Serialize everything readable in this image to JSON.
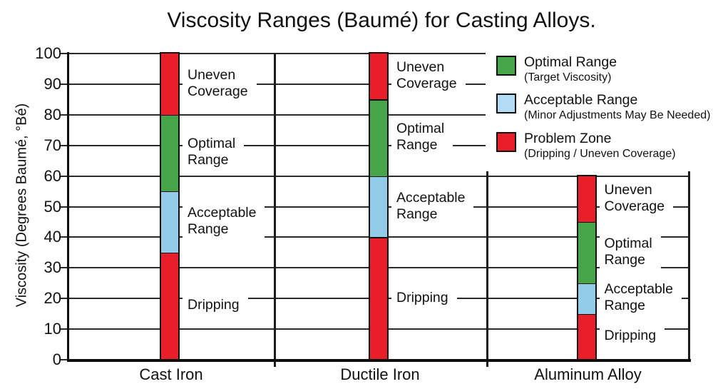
{
  "title": "Viscosity Ranges (Baumé) for Casting Alloys.",
  "colors": {
    "optimal": "#46a549",
    "acceptable": "#92cce9",
    "acceptable_legend": "#b3dcf4",
    "problem": "#e81f28",
    "axis_line": "#101010",
    "grid_line": "#2a2a2a"
  },
  "legend": {
    "items": [
      {
        "zone": "optimal",
        "label": "Optimal Range",
        "sublabel": "(Target Viscosity)"
      },
      {
        "zone": "acceptable",
        "label": "Acceptable Range",
        "sublabel": "(Minor Adjustments May Be Needed)"
      },
      {
        "zone": "problem",
        "label": "Problem Zone",
        "sublabel": "(Dripping / Uneven Coverage)"
      }
    ]
  },
  "chart_data": {
    "type": "bar",
    "stacked": true,
    "title": "Viscosity Ranges (Baumé) for Casting Alloys.",
    "xlabel": "",
    "ylabel": "Viscosity (Degrees Baumé, °Bé)",
    "ylim": [
      0,
      100
    ],
    "yticks": [
      0,
      10,
      20,
      30,
      40,
      50,
      60,
      70,
      80,
      90,
      100
    ],
    "grid": true,
    "legend_position": "top-right",
    "categories": [
      "Cast Iron",
      "Ductile Iron",
      "Aluminum Alloy"
    ],
    "series": [
      {
        "category": "Cast Iron",
        "segments": [
          {
            "from": 0,
            "to": 35,
            "zone": "problem",
            "label": "Dripping"
          },
          {
            "from": 35,
            "to": 55,
            "zone": "acceptable",
            "label": "Acceptable\nRange"
          },
          {
            "from": 55,
            "to": 80,
            "zone": "optimal",
            "label": "Optimal\nRange"
          },
          {
            "from": 80,
            "to": 100,
            "zone": "problem",
            "label": "Uneven\nCoverage"
          }
        ]
      },
      {
        "category": "Ductile Iron",
        "segments": [
          {
            "from": 0,
            "to": 40,
            "zone": "problem",
            "label": "Dripping"
          },
          {
            "from": 40,
            "to": 60,
            "zone": "acceptable",
            "label": "Acceptable\nRange"
          },
          {
            "from": 60,
            "to": 85,
            "zone": "optimal",
            "label": "Optimal\nRange"
          },
          {
            "from": 85,
            "to": 100,
            "zone": "problem",
            "label": "Uneven\nCoverage"
          }
        ]
      },
      {
        "category": "Aluminum Alloy",
        "segments": [
          {
            "from": 0,
            "to": 15,
            "zone": "problem",
            "label": "Dripping"
          },
          {
            "from": 15,
            "to": 25,
            "zone": "acceptable",
            "label": "Acceptable\nRange"
          },
          {
            "from": 25,
            "to": 45,
            "zone": "optimal",
            "label": "Optimal\nRange"
          },
          {
            "from": 45,
            "to": 60,
            "zone": "problem",
            "label": "Uneven\nCoverage"
          }
        ]
      }
    ]
  }
}
